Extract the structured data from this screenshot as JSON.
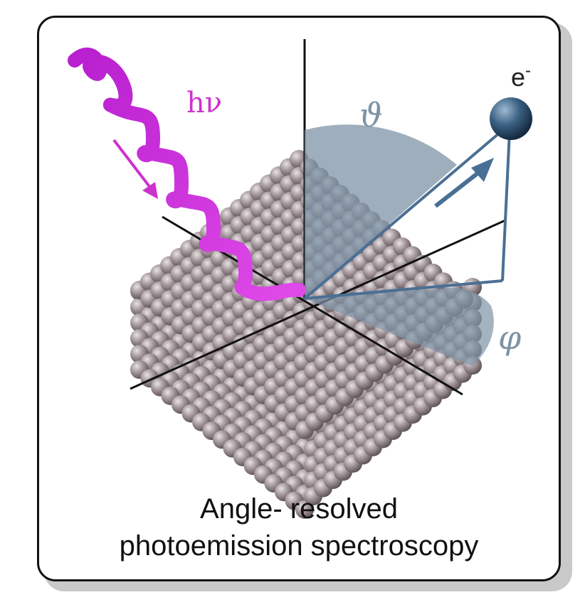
{
  "caption": {
    "line1": "Angle- resolved",
    "line2": "photoemission spectroscopy"
  },
  "labels": {
    "photon": "hν",
    "electron": "e",
    "electron_charge": "-",
    "polar_angle": "ϑ",
    "azimuthal_angle": "φ"
  },
  "colors": {
    "photon": "#cc33cc",
    "electron": "#2f4f6f",
    "angle_wedge": "#7d93a5",
    "atoms": "#9a8e92"
  }
}
